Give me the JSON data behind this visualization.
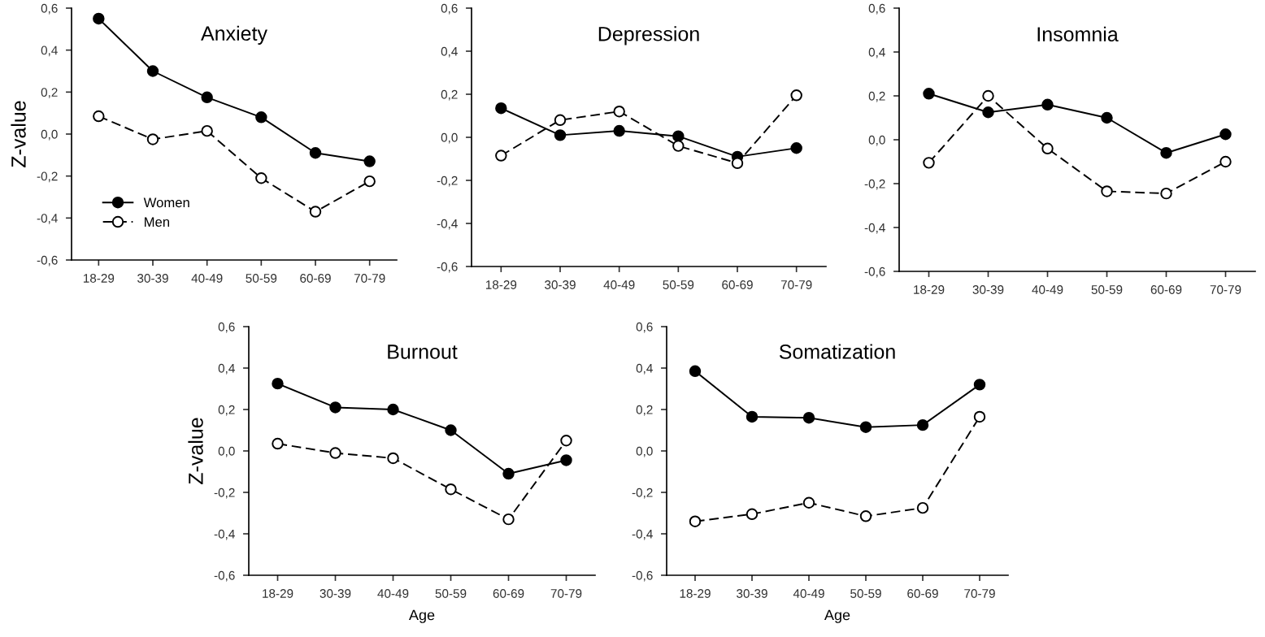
{
  "chart_data": [
    {
      "type": "line",
      "title": "Anxiety",
      "ylabel": "Z-value",
      "categories": [
        "18-29",
        "30-39",
        "40-49",
        "50-59",
        "60-69",
        "70-79"
      ],
      "ylim": [
        -0.6,
        0.6
      ],
      "yticks": [
        {
          "value": -0.6,
          "label": "-0,6"
        },
        {
          "value": -0.4,
          "label": "-0,4"
        },
        {
          "value": -0.2,
          "label": "-0,2"
        },
        {
          "value": 0,
          "label": "0,0"
        },
        {
          "value": 0.2,
          "label": "0,2"
        },
        {
          "value": 0.4,
          "label": "0,4"
        },
        {
          "value": 0.6,
          "label": "0,6"
        }
      ],
      "marker": "circle",
      "legend": "bottom left",
      "series": [
        {
          "name": "Women",
          "color": "#000000",
          "line_style": "solid",
          "values": [
            0.55,
            0.3,
            0.175,
            0.08,
            -0.09,
            -0.13
          ]
        },
        {
          "name": "Men",
          "color": "#000000",
          "line_style": "dashed",
          "values": [
            0.085,
            -0.025,
            0.015,
            -0.21,
            -0.37,
            -0.225
          ]
        }
      ]
    },
    {
      "type": "line",
      "title": "Depression",
      "categories": [
        "18-29",
        "30-39",
        "40-49",
        "50-59",
        "60-69",
        "70-79"
      ],
      "ylim": [
        -0.6,
        0.6
      ],
      "yticks": [
        {
          "value": -0.6,
          "label": "-0,6"
        },
        {
          "value": -0.4,
          "label": "-0,4"
        },
        {
          "value": -0.2,
          "label": "-0,2"
        },
        {
          "value": 0,
          "label": "0,0"
        },
        {
          "value": 0.2,
          "label": "0,2"
        },
        {
          "value": 0.4,
          "label": "0,4"
        },
        {
          "value": 0.6,
          "label": "0,6"
        }
      ],
      "marker": "circle",
      "series": [
        {
          "color": "#000000",
          "line_style": "solid",
          "values": [
            0.135,
            0.01,
            0.03,
            0.005,
            -0.09,
            -0.05
          ]
        },
        {
          "color": "#000000",
          "line_style": "dashed",
          "values": [
            -0.085,
            0.08,
            0.12,
            -0.04,
            -0.12,
            0.195
          ]
        }
      ]
    },
    {
      "type": "line",
      "title": "Insomnia",
      "categories": [
        "18-29",
        "30-39",
        "40-49",
        "50-59",
        "60-69",
        "70-79"
      ],
      "ylim": [
        -0.6,
        0.6
      ],
      "yticks": [
        {
          "value": -0.6,
          "label": "-0,6"
        },
        {
          "value": -0.4,
          "label": "-0,4"
        },
        {
          "value": -0.2,
          "label": "-0,2"
        },
        {
          "value": 0,
          "label": "0,0"
        },
        {
          "value": 0.2,
          "label": "0,2"
        },
        {
          "value": 0.4,
          "label": "0,4"
        },
        {
          "value": 0.6,
          "label": "0,6"
        }
      ],
      "marker": "circle",
      "series": [
        {
          "color": "#000000",
          "line_style": "solid",
          "values": [
            0.21,
            0.125,
            0.16,
            0.1,
            -0.06,
            0.025
          ]
        },
        {
          "color": "#000000",
          "line_style": "dashed",
          "values": [
            -0.105,
            0.2,
            -0.04,
            -0.235,
            -0.245,
            -0.1
          ]
        }
      ]
    },
    {
      "type": "line",
      "title": "Burnout",
      "ylabel": "Z-value",
      "xlabel": "Age",
      "categories": [
        "18-29",
        "30-39",
        "40-49",
        "50-59",
        "60-69",
        "70-79"
      ],
      "ylim": [
        -0.6,
        0.6
      ],
      "yticks": [
        {
          "value": -0.6,
          "label": "-0,6"
        },
        {
          "value": -0.4,
          "label": "-0,4"
        },
        {
          "value": -0.2,
          "label": "-0,2"
        },
        {
          "value": 0,
          "label": "0,0"
        },
        {
          "value": 0.2,
          "label": "0,2"
        },
        {
          "value": 0.4,
          "label": "0,4"
        },
        {
          "value": 0.6,
          "label": "0,6"
        }
      ],
      "marker": "circle",
      "series": [
        {
          "color": "#000000",
          "line_style": "solid",
          "values": [
            0.325,
            0.21,
            0.2,
            0.1,
            -0.11,
            -0.045
          ]
        },
        {
          "color": "#000000",
          "line_style": "dashed",
          "values": [
            0.035,
            -0.01,
            -0.035,
            -0.185,
            -0.33,
            0.05
          ]
        }
      ]
    },
    {
      "type": "line",
      "title": "Somatization",
      "xlabel": "Age",
      "categories": [
        "18-29",
        "30-39",
        "40-49",
        "50-59",
        "60-69",
        "70-79"
      ],
      "ylim": [
        -0.6,
        0.6
      ],
      "yticks": [
        {
          "value": -0.6,
          "label": "-0,6"
        },
        {
          "value": -0.4,
          "label": "-0,4"
        },
        {
          "value": -0.2,
          "label": "-0,2"
        },
        {
          "value": 0,
          "label": "0,0"
        },
        {
          "value": 0.2,
          "label": "0,2"
        },
        {
          "value": 0.4,
          "label": "0,4"
        },
        {
          "value": 0.6,
          "label": "0,6"
        }
      ],
      "marker": "circle",
      "series": [
        {
          "color": "#000000",
          "line_style": "solid",
          "values": [
            0.385,
            0.165,
            0.16,
            0.115,
            0.125,
            0.32
          ]
        },
        {
          "color": "#000000",
          "line_style": "dashed",
          "values": [
            -0.34,
            -0.305,
            -0.25,
            -0.315,
            -0.275,
            0.165
          ]
        }
      ]
    }
  ]
}
